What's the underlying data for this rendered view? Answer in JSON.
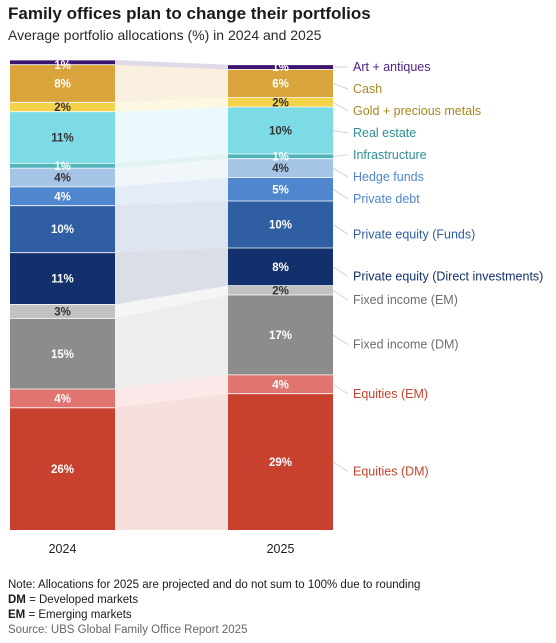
{
  "title": "Family offices plan to change their portfolios",
  "subtitle": "Average portfolio allocations (%) in 2024 and 2025",
  "chart_data": {
    "type": "bar",
    "stacked": true,
    "categories": [
      "2024",
      "2025"
    ],
    "ylim": [
      0,
      100
    ],
    "grid": false,
    "legend_placement": "right",
    "series": [
      {
        "name": "Equities (DM)",
        "values": [
          26,
          29
        ],
        "labels": [
          "26%",
          "29%"
        ],
        "color": "#c8412e",
        "label_color": "#c8412e"
      },
      {
        "name": "Equities (EM)",
        "values": [
          4,
          4
        ],
        "labels": [
          "4%",
          "4%"
        ],
        "color": "#e07570",
        "label_color": "#c8412e"
      },
      {
        "name": "Fixed income (DM)",
        "values": [
          15,
          17
        ],
        "labels": [
          "15%",
          "17%"
        ],
        "color": "#8c8c8c",
        "label_color": "#6e6e6e"
      },
      {
        "name": "Fixed income (EM)",
        "values": [
          3,
          2
        ],
        "labels": [
          "3%",
          "2%"
        ],
        "color": "#c2c2c2",
        "label_color": "#6e6e6e"
      },
      {
        "name": "Private equity (Direct investments)",
        "values": [
          11,
          8
        ],
        "labels": [
          "11%",
          "8%"
        ],
        "color": "#12306b",
        "label_color": "#12306b"
      },
      {
        "name": "Private equity (Funds)",
        "values": [
          10,
          10
        ],
        "labels": [
          "10%",
          "10%"
        ],
        "color": "#2f5ea3",
        "label_color": "#2f5ea3"
      },
      {
        "name": "Private debt",
        "values": [
          4,
          5
        ],
        "labels": [
          "4%",
          "5%"
        ],
        "color": "#4f86cd",
        "label_color": "#4f86cd"
      },
      {
        "name": "Hedge funds",
        "values": [
          4,
          4
        ],
        "labels": [
          "4%",
          "4%"
        ],
        "color": "#a6c4e6",
        "label_color": "#4f86cd"
      },
      {
        "name": "Infrastructure",
        "values": [
          1,
          1
        ],
        "labels": [
          "1%",
          "1%"
        ],
        "color": "#4fb4b8",
        "label_color": "#2e8f94"
      },
      {
        "name": "Real estate",
        "values": [
          11,
          10
        ],
        "labels": [
          "11%",
          "10%"
        ],
        "color": "#7ddbe6",
        "label_color": "#2e8f94"
      },
      {
        "name": "Gold + precious metals",
        "values": [
          2,
          2
        ],
        "labels": [
          "2%",
          "2%"
        ],
        "color": "#f5d24b",
        "label_color": "#a8861f"
      },
      {
        "name": "Cash",
        "values": [
          8,
          6
        ],
        "labels": [
          "8%",
          "6%"
        ],
        "color": "#d9a43c",
        "label_color": "#a8861f"
      },
      {
        "name": "Art + antiques",
        "values": [
          1,
          1
        ],
        "labels": [
          "1%",
          "1%"
        ],
        "color": "#3b1470",
        "label_color": "#4a1f8a"
      }
    ]
  },
  "notes": {
    "line1": "Note: Allocations for 2025 are projected and do not sum to 100% due to rounding",
    "dm_abbr": "DM",
    "dm_text": " = Developed markets",
    "em_abbr": "EM",
    "em_text": " = Emerging markets",
    "source": "Source: UBS Global Family Office Report 2025"
  }
}
